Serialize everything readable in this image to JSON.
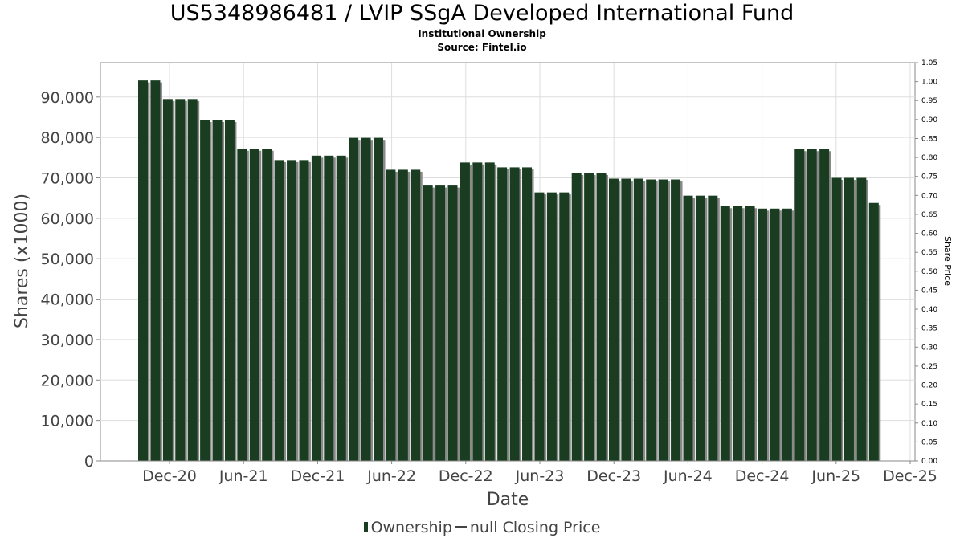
{
  "header": {
    "title": "US5348986481 / LVIP SSgA Developed International Fund",
    "subtitle1": "Institutional Ownership",
    "subtitle2": "Source: Fintel.io"
  },
  "legend": {
    "ownership_label": "Ownership",
    "price_label": "null Closing Price"
  },
  "colors": {
    "bar": "#1a3d22",
    "bar_shadow": "#8a8a8a",
    "grid": "#dddddd",
    "axis": "#888888"
  },
  "chart_data": {
    "type": "bar",
    "xlabel": "Date",
    "ylabel": "Shares (x1000)",
    "y2label": "Share Price",
    "ylim": [
      0,
      98500
    ],
    "y2lim": [
      0,
      1.05
    ],
    "y_ticks": [
      "0",
      "10,000",
      "20,000",
      "30,000",
      "40,000",
      "50,000",
      "60,000",
      "70,000",
      "80,000",
      "90,000"
    ],
    "y2_ticks": [
      "0.00",
      "0.05",
      "0.10",
      "0.15",
      "0.20",
      "0.25",
      "0.30",
      "0.35",
      "0.40",
      "0.45",
      "0.50",
      "0.55",
      "0.60",
      "0.65",
      "0.70",
      "0.75",
      "0.80",
      "0.85",
      "0.90",
      "0.95",
      "1.00",
      "1.05"
    ],
    "x_ticks": [
      "Dec-20",
      "Jun-21",
      "Dec-21",
      "Jun-22",
      "Dec-22",
      "Jun-23",
      "Dec-23",
      "Jun-24",
      "Dec-24",
      "Jun-25",
      "Dec-25"
    ],
    "grid": true,
    "legend_position": "bottom",
    "series": [
      {
        "name": "Ownership",
        "values": [
          94100,
          94100,
          89500,
          89500,
          89500,
          84300,
          84300,
          84300,
          77200,
          77200,
          77200,
          74400,
          74400,
          74400,
          75500,
          75500,
          75500,
          79900,
          79900,
          79900,
          72000,
          72000,
          72000,
          68100,
          68100,
          68100,
          73800,
          73800,
          73800,
          72600,
          72600,
          72600,
          66400,
          66400,
          66400,
          71200,
          71200,
          71200,
          69800,
          69800,
          69800,
          69600,
          69600,
          69600,
          65600,
          65600,
          65600,
          63000,
          63000,
          63000,
          62400,
          62400,
          62400,
          77100,
          77100,
          77100,
          70000,
          70000,
          70000,
          63800
        ]
      }
    ]
  }
}
